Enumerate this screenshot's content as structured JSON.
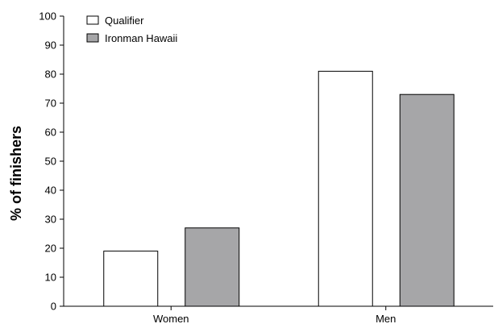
{
  "chart_data": {
    "type": "bar",
    "title": "",
    "xlabel": "",
    "ylabel": "% of finishers",
    "categories": [
      "Women",
      "Men"
    ],
    "series": [
      {
        "name": "Qualifier",
        "values": [
          19,
          81
        ],
        "color": "#ffffff"
      },
      {
        "name": "Ironman Hawaii",
        "values": [
          27,
          73
        ],
        "color": "#a6a6a8"
      }
    ],
    "ylim": [
      0,
      100
    ],
    "yticks": [
      "0",
      "10",
      "20",
      "30",
      "40",
      "50",
      "60",
      "70",
      "80",
      "90",
      "100"
    ],
    "grid": false,
    "legend_position": "top-left"
  }
}
